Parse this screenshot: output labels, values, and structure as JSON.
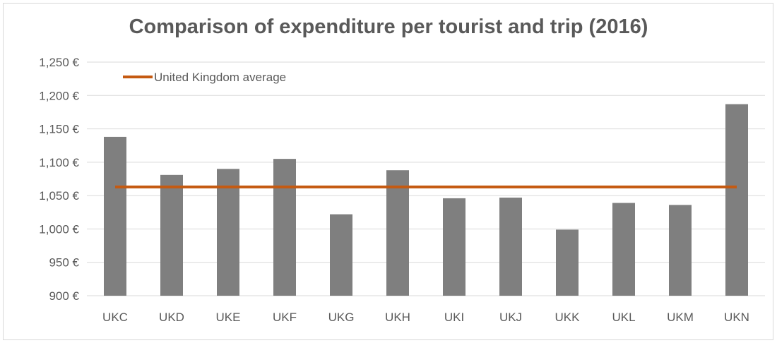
{
  "chart_data": {
    "type": "bar",
    "title": "Comparison of expenditure per tourist and trip (2016)",
    "categories": [
      "UKC",
      "UKD",
      "UKE",
      "UKF",
      "UKG",
      "UKH",
      "UKI",
      "UKJ",
      "UKK",
      "UKL",
      "UKM",
      "UKN"
    ],
    "series": [
      {
        "type": "bar",
        "values": [
          1138,
          1081,
          1090,
          1105,
          1022,
          1088,
          1046,
          1047,
          999,
          1039,
          1036,
          1187
        ],
        "color": "#7f7f7f"
      },
      {
        "type": "line",
        "name": "United Kingdom average",
        "value": 1063,
        "color": "#c55a11"
      }
    ],
    "ylim": [
      900,
      1250
    ],
    "y_ticks": [
      900,
      950,
      1000,
      1050,
      1100,
      1150,
      1200,
      1250
    ],
    "y_tick_labels": [
      "900 €",
      "950 €",
      "1,000 €",
      "1,050 €",
      "1,100 €",
      "1,150 €",
      "1,200 €",
      "1,250 €"
    ],
    "grid": true,
    "legend": "top-left"
  }
}
